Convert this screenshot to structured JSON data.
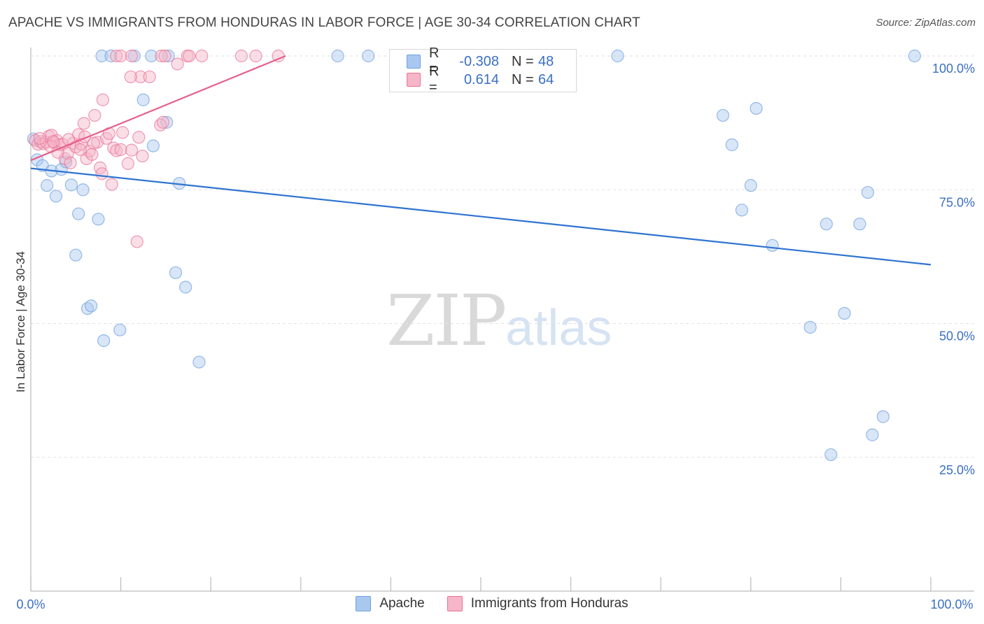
{
  "title": "APACHE VS IMMIGRANTS FROM HONDURAS IN LABOR FORCE | AGE 30-34 CORRELATION CHART",
  "source": "Source: ZipAtlas.com",
  "watermark": {
    "zip": "ZIP",
    "atlas": "atlas"
  },
  "legend": {
    "rows": [
      {
        "r_label": "R =",
        "r_value": "-0.308",
        "n_label": "N =",
        "n_value": "48",
        "color": "#a9c8f0"
      },
      {
        "r_label": "R =",
        "r_value": "0.614",
        "n_label": "N =",
        "n_value": "64",
        "color": "#f5b6c8"
      }
    ]
  },
  "bottom_legend": [
    "Apache",
    "Immigrants from Honduras"
  ],
  "chart_data": {
    "type": "scatter",
    "title": "APACHE VS IMMIGRANTS FROM HONDURAS IN LABOR FORCE | AGE 30-34 CORRELATION CHART",
    "xlabel": "",
    "ylabel": "In Labor Force | Age 30-34",
    "xlim": [
      0,
      100
    ],
    "ylim": [
      0,
      100
    ],
    "x_tick_labels": [
      "0.0%",
      "100.0%"
    ],
    "y_tick_values": [
      25,
      50,
      75,
      100
    ],
    "y_tick_labels": [
      "25.0%",
      "50.0%",
      "75.0%",
      "100.0%"
    ],
    "grid": true,
    "legend_position": "top-center",
    "series": [
      {
        "name": "Apache",
        "color": "#6fa0dd",
        "fill": "#a9c8f0",
        "trend": {
          "x": [
            0,
            100
          ],
          "y": [
            79,
            61
          ]
        },
        "points": [
          [
            0.3,
            84.5
          ],
          [
            0.7,
            80.6
          ],
          [
            1.3,
            79.5
          ],
          [
            1.8,
            75.8
          ],
          [
            2.3,
            78.5
          ],
          [
            2.8,
            73.8
          ],
          [
            3.4,
            78.8
          ],
          [
            3.9,
            80.2
          ],
          [
            4.5,
            75.9
          ],
          [
            5.3,
            70.5
          ],
          [
            5.8,
            75.0
          ],
          [
            5.0,
            62.8
          ],
          [
            6.3,
            52.8
          ],
          [
            6.7,
            53.3
          ],
          [
            7.5,
            69.5
          ],
          [
            8.1,
            46.8
          ],
          [
            9.9,
            48.8
          ],
          [
            7.9,
            100
          ],
          [
            8.9,
            100
          ],
          [
            11.5,
            100
          ],
          [
            12.5,
            91.8
          ],
          [
            13.4,
            100
          ],
          [
            15.3,
            100
          ],
          [
            13.6,
            83.2
          ],
          [
            15.1,
            87.6
          ],
          [
            16.1,
            59.5
          ],
          [
            16.5,
            76.2
          ],
          [
            17.2,
            56.8
          ],
          [
            18.7,
            42.8
          ],
          [
            34.1,
            100
          ],
          [
            37.5,
            100
          ],
          [
            43.8,
            100
          ],
          [
            65.2,
            100
          ],
          [
            98.2,
            100
          ],
          [
            76.9,
            88.9
          ],
          [
            80.6,
            90.2
          ],
          [
            77.9,
            83.4
          ],
          [
            79.0,
            71.2
          ],
          [
            80.0,
            75.8
          ],
          [
            82.4,
            64.6
          ],
          [
            88.4,
            68.6
          ],
          [
            92.1,
            68.6
          ],
          [
            93.0,
            74.5
          ],
          [
            86.6,
            49.3
          ],
          [
            90.4,
            51.9
          ],
          [
            93.5,
            29.2
          ],
          [
            94.7,
            32.6
          ],
          [
            88.9,
            25.5
          ]
        ]
      },
      {
        "name": "Immigrants from Honduras",
        "color": "#e97298",
        "fill": "#f5b6c8",
        "trend": {
          "x": [
            0,
            28.3
          ],
          "y": [
            80.5,
            100
          ]
        },
        "points": [
          [
            0.5,
            84.2
          ],
          [
            0.8,
            83.5
          ],
          [
            1.1,
            84.0
          ],
          [
            1.4,
            83.6
          ],
          [
            1.7,
            83.9
          ],
          [
            2.0,
            85.0
          ],
          [
            2.3,
            85.2
          ],
          [
            2.6,
            83.8
          ],
          [
            2.9,
            84.2
          ],
          [
            3.2,
            83.4
          ],
          [
            3.5,
            83.5
          ],
          [
            3.8,
            80.8
          ],
          [
            4.1,
            81.8
          ],
          [
            4.4,
            80.0
          ],
          [
            4.7,
            83.7
          ],
          [
            5.0,
            83.0
          ],
          [
            5.3,
            85.3
          ],
          [
            5.6,
            83.5
          ],
          [
            5.9,
            87.4
          ],
          [
            6.2,
            80.8
          ],
          [
            6.5,
            82.2
          ],
          [
            6.8,
            81.6
          ],
          [
            7.1,
            88.9
          ],
          [
            7.4,
            83.9
          ],
          [
            7.7,
            79.1
          ],
          [
            7.9,
            78.0
          ],
          [
            8.0,
            91.8
          ],
          [
            8.4,
            84.6
          ],
          [
            8.7,
            85.5
          ],
          [
            9.0,
            76.0
          ],
          [
            9.2,
            82.8
          ],
          [
            9.5,
            82.3
          ],
          [
            10.0,
            82.5
          ],
          [
            10.2,
            85.7
          ],
          [
            10.8,
            79.9
          ],
          [
            11.2,
            82.4
          ],
          [
            12.0,
            84.8
          ],
          [
            12.2,
            96.1
          ],
          [
            12.4,
            81.3
          ],
          [
            14.4,
            87.1
          ],
          [
            14.7,
            87.6
          ],
          [
            9.5,
            100
          ],
          [
            10.0,
            100
          ],
          [
            11.1,
            96.1
          ],
          [
            11.2,
            100
          ],
          [
            14.5,
            100
          ],
          [
            14.9,
            100
          ],
          [
            16.3,
            98.5
          ],
          [
            17.4,
            100
          ],
          [
            19.0,
            100
          ],
          [
            23.4,
            100
          ],
          [
            25.0,
            100
          ],
          [
            27.5,
            100
          ],
          [
            17.6,
            100
          ],
          [
            11.8,
            65.3
          ],
          [
            13.2,
            96.1
          ],
          [
            1.0,
            84.6
          ],
          [
            2.2,
            83.1
          ],
          [
            3.0,
            82.0
          ],
          [
            4.2,
            84.4
          ],
          [
            5.5,
            82.5
          ],
          [
            6.0,
            84.9
          ],
          [
            7.0,
            83.7
          ],
          [
            2.5,
            84.0
          ]
        ]
      }
    ]
  }
}
